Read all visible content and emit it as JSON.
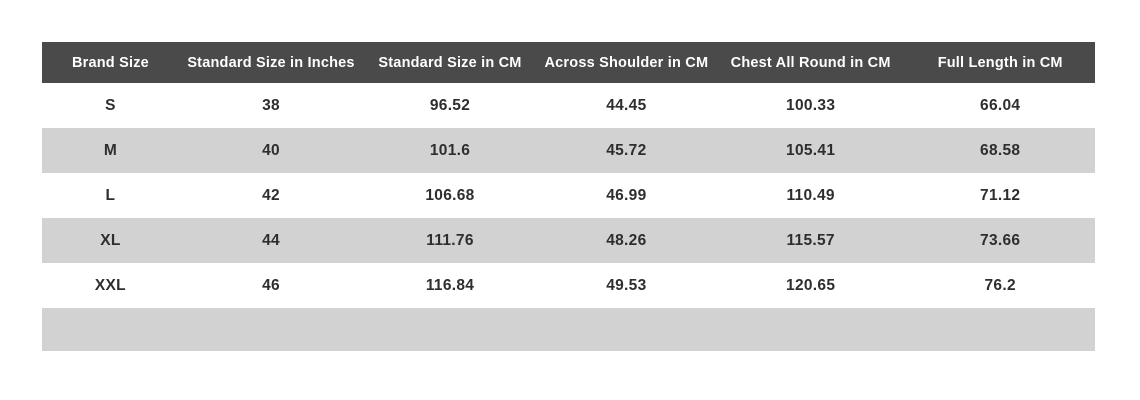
{
  "size_chart": {
    "columns": [
      "Brand Size",
      "Standard Size in Inches",
      "Standard Size in CM",
      "Across Shoulder in CM",
      "Chest All Round in CM",
      "Full Length in CM"
    ],
    "rows": [
      [
        "S",
        "38",
        "96.52",
        "44.45",
        "100.33",
        "66.04"
      ],
      [
        "M",
        "40",
        "101.6",
        "45.72",
        "105.41",
        "68.58"
      ],
      [
        "L",
        "42",
        "106.68",
        "46.99",
        "110.49",
        "71.12"
      ],
      [
        "XL",
        "44",
        "111.76",
        "48.26",
        "115.57",
        "73.66"
      ],
      [
        "XXL",
        "46",
        "116.84",
        "49.53",
        "120.65",
        "76.2"
      ],
      [
        "",
        "",
        "",
        "",
        "",
        ""
      ]
    ],
    "colors": {
      "header_bg": "#4a4a4a",
      "header_text": "#ffffff",
      "row_bg": "#ffffff",
      "row_alt_bg": "#d2d2d2",
      "body_text": "#2e2e2e"
    }
  }
}
